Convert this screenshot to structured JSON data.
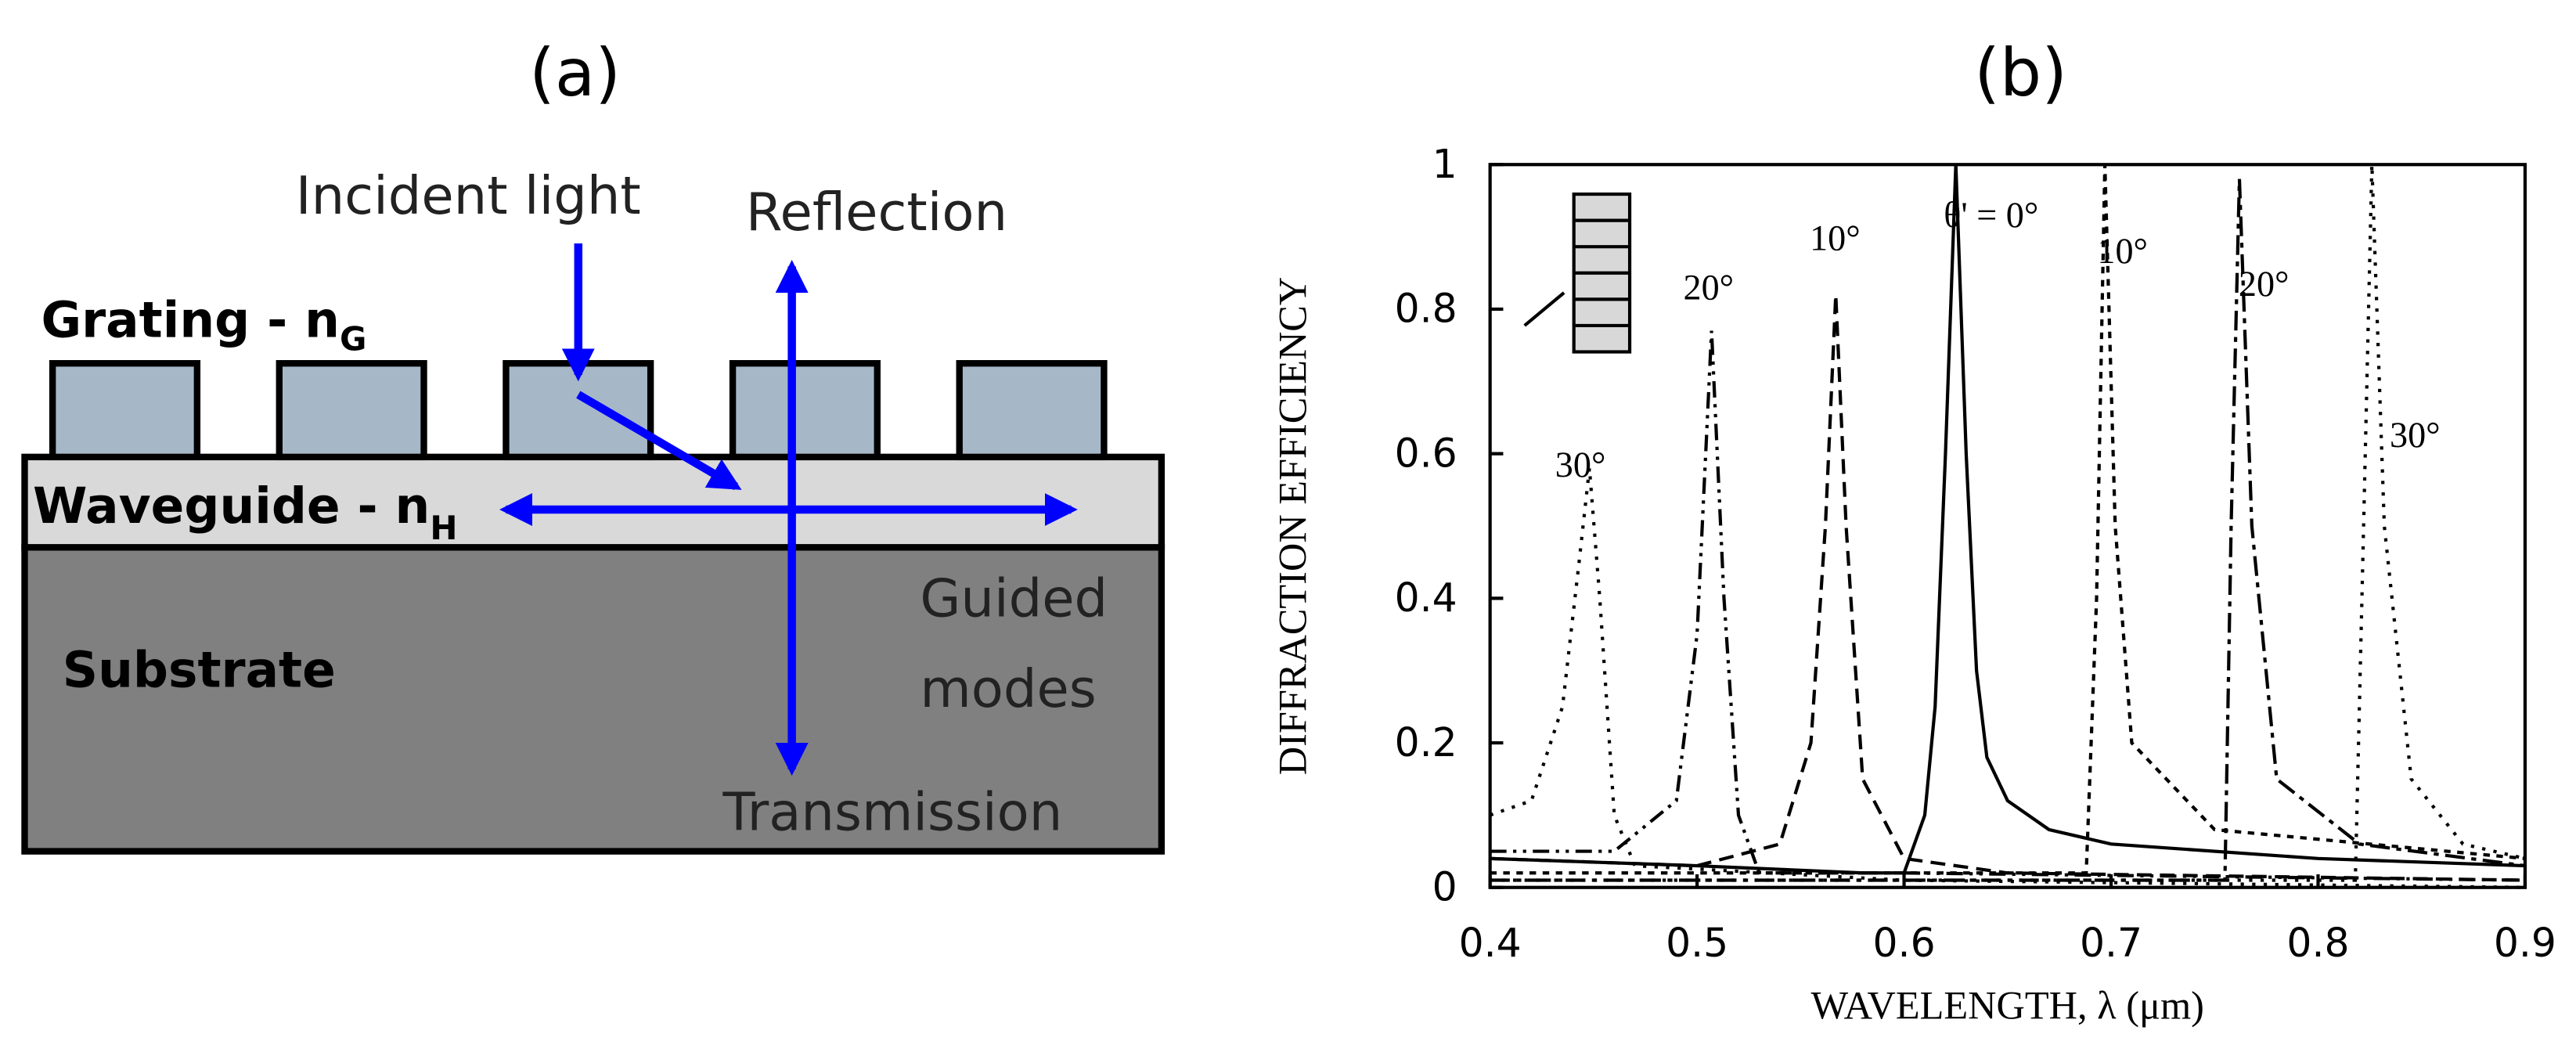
{
  "diagram": {
    "title": "(a)",
    "incident": "Incident light",
    "reflection": "Reflection",
    "grating": "Grating - n",
    "grating_sub": "G",
    "waveguide": "Waveguide - n",
    "waveguide_sub": "H",
    "substrate": "Substrate",
    "guided": [
      "Guided",
      "modes"
    ],
    "transmission": "Transmission"
  },
  "chart_data": {
    "type": "line",
    "title": "(b)",
    "xlabel": "WAVELENGTH, λ  (μm)",
    "ylabel": "DIFFRACTION EFFICIENCY",
    "xlim": [
      0.4,
      0.9
    ],
    "ylim": [
      0,
      1
    ],
    "xticks": [
      0.4,
      0.5,
      0.6,
      0.7,
      0.8,
      0.9
    ],
    "yticks": [
      0,
      0.2,
      0.4,
      0.6,
      0.8,
      1
    ],
    "series": [
      {
        "name": "30°",
        "color": "#000",
        "dash": "2,5",
        "x": [
          0.4,
          0.42,
          0.435,
          0.443,
          0.448,
          0.453,
          0.46,
          0.47,
          0.6,
          0.9
        ],
        "values": [
          0.1,
          0.12,
          0.25,
          0.45,
          0.58,
          0.4,
          0.1,
          0.03,
          0.01,
          0
        ]
      },
      {
        "name": "20°",
        "color": "#000",
        "dash": "10,4,2,4,2,4",
        "x": [
          0.4,
          0.46,
          0.49,
          0.5,
          0.507,
          0.513,
          0.52,
          0.53,
          0.6,
          0.9
        ],
        "values": [
          0.05,
          0.05,
          0.12,
          0.35,
          0.77,
          0.4,
          0.1,
          0.02,
          0.02,
          0.01
        ]
      },
      {
        "name": "10°",
        "color": "#000",
        "dash": "9,5",
        "x": [
          0.4,
          0.5,
          0.54,
          0.555,
          0.562,
          0.567,
          0.572,
          0.58,
          0.6,
          0.65,
          0.9
        ],
        "values": [
          0.04,
          0.03,
          0.06,
          0.2,
          0.5,
          0.82,
          0.5,
          0.15,
          0.04,
          0.02,
          0.01
        ]
      },
      {
        "name": "θ' = 0°",
        "color": "#000",
        "dash": "",
        "x": [
          0.4,
          0.5,
          0.58,
          0.6,
          0.61,
          0.615,
          0.62,
          0.625,
          0.63,
          0.635,
          0.64,
          0.65,
          0.67,
          0.7,
          0.8,
          0.9
        ],
        "values": [
          0.04,
          0.03,
          0.02,
          0.02,
          0.1,
          0.25,
          0.6,
          1,
          0.6,
          0.3,
          0.18,
          0.12,
          0.08,
          0.06,
          0.04,
          0.03
        ]
      },
      {
        "name": "10°",
        "color": "#000",
        "dash": "4,4",
        "x": [
          0.4,
          0.688,
          0.693,
          0.697,
          0.702,
          0.71,
          0.75,
          0.9
        ],
        "values": [
          0.02,
          0.02,
          0.4,
          1,
          0.5,
          0.2,
          0.08,
          0.04
        ]
      },
      {
        "name": "20°",
        "color": "#000",
        "dash": "12,4,3,4",
        "x": [
          0.4,
          0.755,
          0.758,
          0.762,
          0.768,
          0.78,
          0.82,
          0.9
        ],
        "values": [
          0.01,
          0.01,
          0.5,
          0.98,
          0.5,
          0.15,
          0.06,
          0.03
        ]
      },
      {
        "name": "30°",
        "color": "#000",
        "dash": "2,5",
        "x": [
          0.4,
          0.818,
          0.822,
          0.826,
          0.832,
          0.845,
          0.87,
          0.9
        ],
        "values": [
          0.01,
          0.01,
          0.5,
          1,
          0.5,
          0.15,
          0.06,
          0.04
        ]
      }
    ]
  }
}
